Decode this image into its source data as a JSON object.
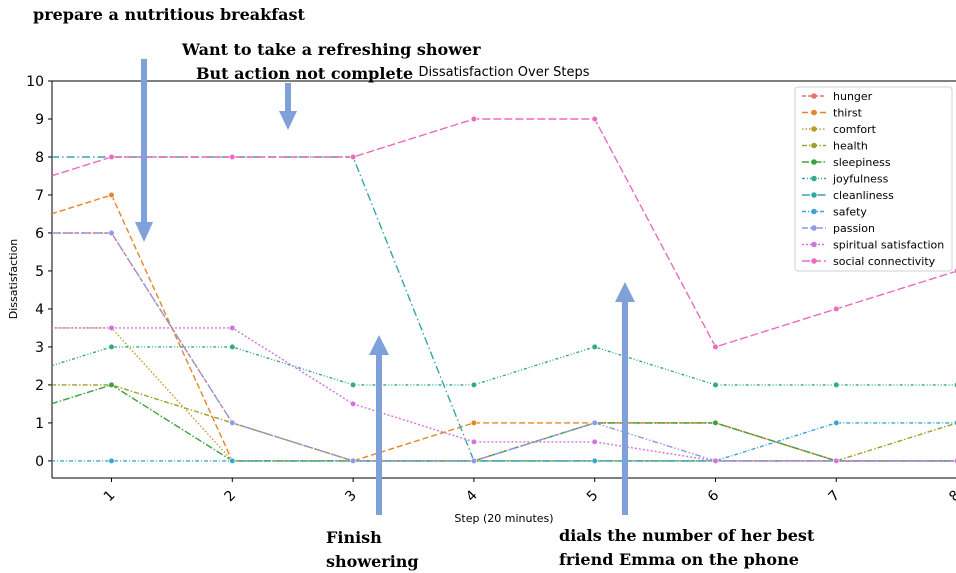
{
  "annotations": {
    "top_left": "prepare a nutritious breakfast",
    "top_mid_line1": "Want to take a refreshing shower",
    "top_mid_line2": "But action not complete",
    "bottom_mid_line1": "Finish",
    "bottom_mid_line2": "showering",
    "bottom_right_line1": "dials the number of her best",
    "bottom_right_line2": "friend Emma on the phone"
  },
  "chart_data": {
    "type": "line",
    "title": "Dissatisfaction Over Steps",
    "xlabel": "Step (20 minutes)",
    "ylabel": "Dissatisfaction",
    "x": [
      0.5,
      1,
      2,
      3,
      4,
      5,
      6,
      7,
      8
    ],
    "xticks": [
      "1",
      "2",
      "3",
      "4",
      "5",
      "6",
      "7",
      "8"
    ],
    "xlim": [
      0.5,
      8
    ],
    "ylim": [
      -0.45,
      10
    ],
    "yticks": [
      0,
      1,
      2,
      3,
      4,
      5,
      6,
      7,
      8,
      9,
      10
    ],
    "grid": false,
    "legend_position": "top-right",
    "series": [
      {
        "name": "hunger",
        "color": "#e8726f",
        "dash": "4,2",
        "values": [
          6,
          6,
          1,
          0,
          0,
          1,
          1,
          0,
          0
        ]
      },
      {
        "name": "thirst",
        "color": "#e3862b",
        "dash": "6,3",
        "values": [
          6.5,
          7,
          0,
          0,
          1,
          1,
          1,
          0,
          0
        ]
      },
      {
        "name": "comfort",
        "color": "#bf9a2e",
        "dash": "1.5,2",
        "values": [
          3.5,
          3.5,
          0,
          0,
          0,
          0,
          0,
          0,
          0
        ]
      },
      {
        "name": "health",
        "color": "#9ca12a",
        "dash": "5,2,1.5,2",
        "values": [
          2,
          2,
          1,
          0,
          0,
          0,
          0,
          0,
          1
        ]
      },
      {
        "name": "sleepiness",
        "color": "#3aa33f",
        "dash": "7,2,1.5,2",
        "values": [
          1.5,
          2,
          0,
          0,
          0,
          1,
          1,
          0,
          0
        ]
      },
      {
        "name": "joyfulness",
        "color": "#36a88c",
        "dash": "3,2,1,2,1,2",
        "values": [
          2.5,
          3,
          3,
          2,
          2,
          3,
          2,
          2,
          2
        ]
      },
      {
        "name": "cleanliness",
        "color": "#35a6a6",
        "dash": "8,3,1.5,3",
        "values": [
          8,
          8,
          8,
          8,
          0,
          0,
          0,
          0,
          0
        ]
      },
      {
        "name": "safety",
        "color": "#3aa5d4",
        "dash": "4,2,1,2",
        "values": [
          0,
          0,
          0,
          0,
          0,
          0,
          0,
          1,
          1
        ]
      },
      {
        "name": "passion",
        "color": "#8f9be0",
        "dash": "6,2,1.5,2,1.5,2",
        "values": [
          6,
          6,
          1,
          0,
          0,
          1,
          0,
          0,
          0
        ]
      },
      {
        "name": "spiritual satisfaction",
        "color": "#d273e0",
        "dash": "2,2",
        "values": [
          3.5,
          3.5,
          3.5,
          1.5,
          0.5,
          0.5,
          0,
          0,
          0
        ]
      },
      {
        "name": "social connectivity",
        "color": "#ea6bbf",
        "dash": "8,3",
        "values": [
          7.5,
          8,
          8,
          8,
          9,
          9,
          3,
          4,
          5
        ]
      }
    ]
  }
}
